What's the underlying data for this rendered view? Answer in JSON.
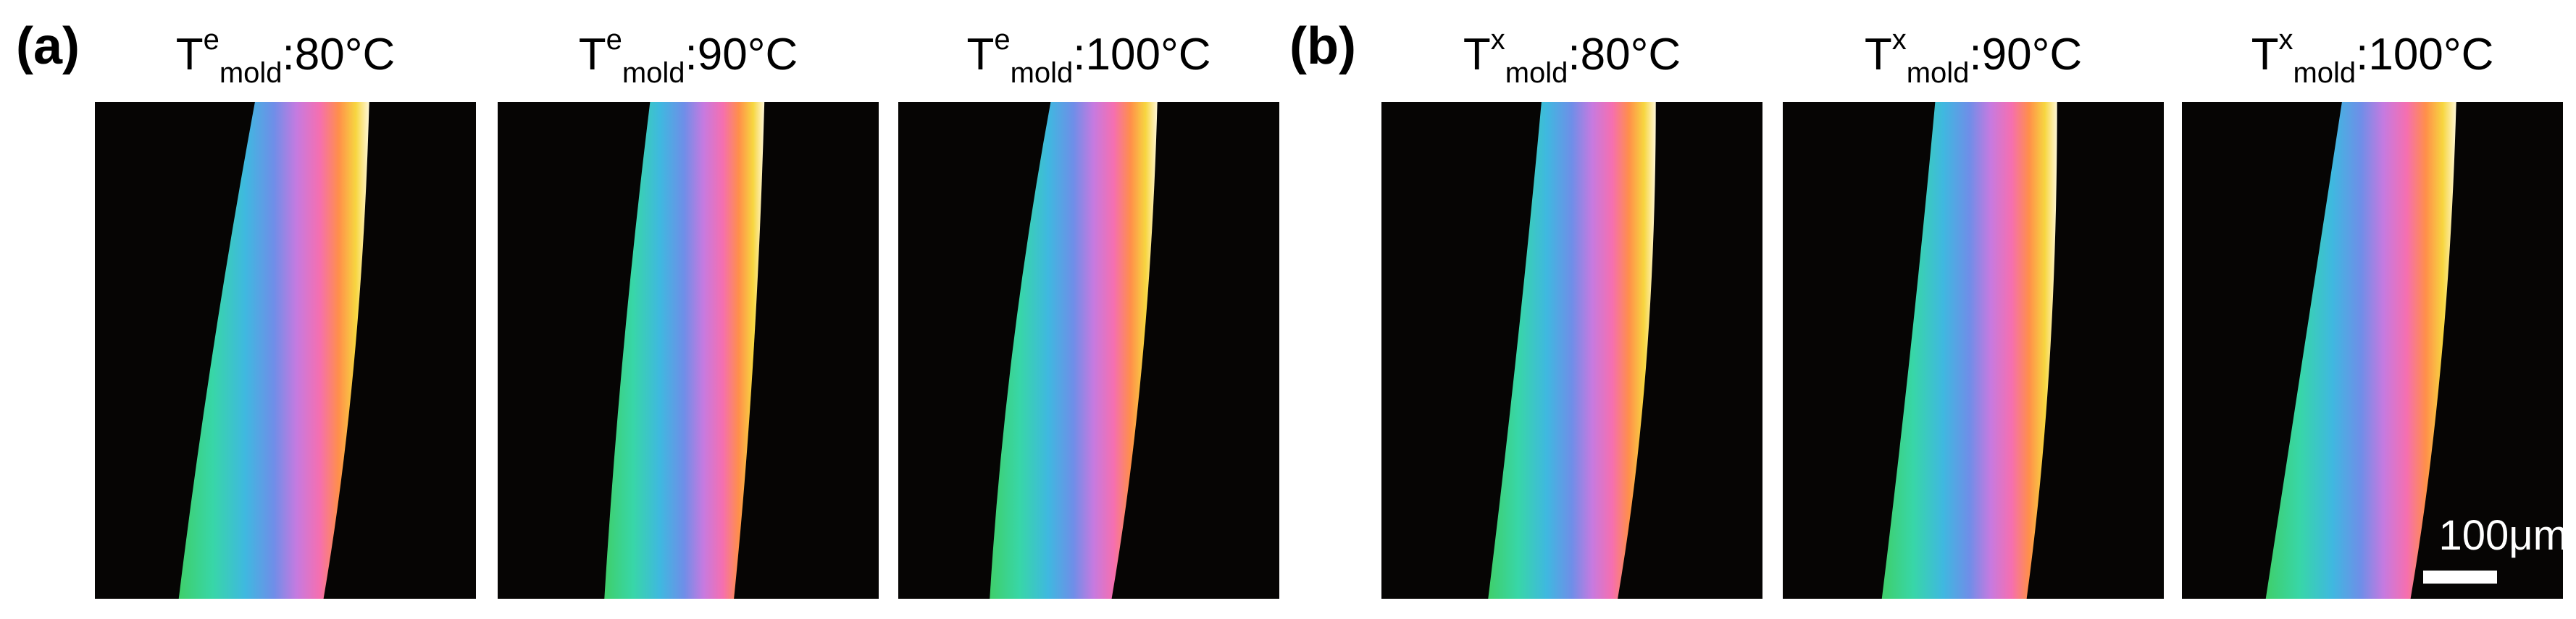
{
  "panel_labels": [
    "(a)",
    "(b)"
  ],
  "panels": [
    {
      "title": {
        "base": "T",
        "sup": "e",
        "sub": "mold",
        "rest": ":80°C"
      }
    },
    {
      "title": {
        "base": "T",
        "sup": "e",
        "sub": "mold",
        "rest": ":90°C"
      }
    },
    {
      "title": {
        "base": "T",
        "sup": "e",
        "sub": "mold",
        "rest": ":100°C"
      }
    },
    {
      "title": {
        "base": "T",
        "sup": "x",
        "sub": "mold",
        "rest": ":80°C"
      }
    },
    {
      "title": {
        "base": "T",
        "sup": "x",
        "sub": "mold",
        "rest": ":90°C"
      }
    },
    {
      "title": {
        "base": "T",
        "sup": "x",
        "sub": "mold",
        "rest": ":100°C"
      }
    }
  ],
  "scale_bar": "100μm"
}
